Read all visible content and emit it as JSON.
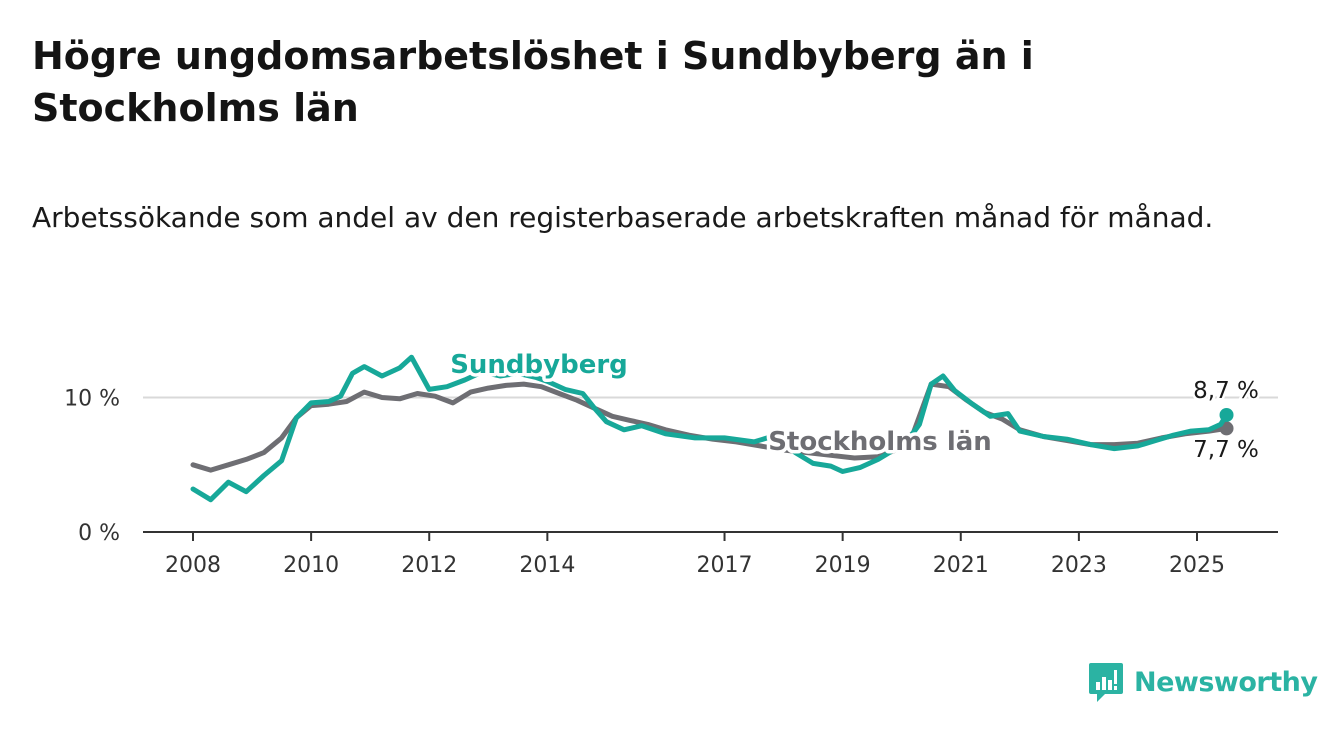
{
  "title": "Högre ungdomsarbetslöshet i Sundbyberg än i Stockholms län",
  "subtitle": "Arbetssökande som andel av den registerbaserade arbetskraften månad för månad.",
  "brand": {
    "name": "Newsworthy"
  },
  "chart_data": {
    "type": "line",
    "title": "Högre ungdomsarbetslöshet i Sundbyberg än i Stockholms län",
    "subtitle": "Arbetssökande som andel av den registerbaserade arbetskraften månad för månad.",
    "xlabel": "",
    "ylabel": "",
    "xlim": [
      2008,
      2026.2
    ],
    "ylim": [
      0,
      12.5
    ],
    "x_ticks": [
      2008,
      2010,
      2012,
      2014,
      2017,
      2019,
      2021,
      2023,
      2025
    ],
    "x_tick_labels": [
      "2008",
      "2010",
      "2012",
      "2014",
      "2017",
      "2019",
      "2021",
      "2023",
      "2025"
    ],
    "y_ticks": [
      0,
      10
    ],
    "y_tick_labels": [
      "0 %",
      "10 %"
    ],
    "grid": "horizontal",
    "colors": {
      "Sundbyberg": "#17a899",
      "Stockholms län": "#6e6e73"
    },
    "series": [
      {
        "name": "Sundbyberg",
        "label": "Sundbyberg",
        "end_label": "8,7 %",
        "points": [
          [
            2008.0,
            3.2
          ],
          [
            2008.3,
            2.4
          ],
          [
            2008.6,
            3.7
          ],
          [
            2008.9,
            3.0
          ],
          [
            2009.2,
            4.2
          ],
          [
            2009.5,
            5.3
          ],
          [
            2009.75,
            8.5
          ],
          [
            2010.0,
            9.6
          ],
          [
            2010.3,
            9.7
          ],
          [
            2010.5,
            10.1
          ],
          [
            2010.7,
            11.8
          ],
          [
            2010.9,
            12.3
          ],
          [
            2011.2,
            11.6
          ],
          [
            2011.5,
            12.2
          ],
          [
            2011.7,
            13.0
          ],
          [
            2012.0,
            10.6
          ],
          [
            2012.3,
            10.8
          ],
          [
            2012.6,
            11.3
          ],
          [
            2012.9,
            11.9
          ],
          [
            2013.2,
            11.6
          ],
          [
            2013.5,
            11.8
          ],
          [
            2013.8,
            11.5
          ],
          [
            2014.0,
            11.2
          ],
          [
            2014.3,
            10.6
          ],
          [
            2014.6,
            10.3
          ],
          [
            2014.8,
            9.2
          ],
          [
            2015.0,
            8.2
          ],
          [
            2015.3,
            7.6
          ],
          [
            2015.6,
            7.9
          ],
          [
            2016.0,
            7.3
          ],
          [
            2016.5,
            7.0
          ],
          [
            2017.0,
            7.0
          ],
          [
            2017.5,
            6.7
          ],
          [
            2017.8,
            7.1
          ],
          [
            2018.2,
            5.9
          ],
          [
            2018.5,
            5.1
          ],
          [
            2018.8,
            4.9
          ],
          [
            2019.0,
            4.5
          ],
          [
            2019.3,
            4.8
          ],
          [
            2019.6,
            5.4
          ],
          [
            2019.9,
            6.2
          ],
          [
            2020.1,
            6.8
          ],
          [
            2020.3,
            8.0
          ],
          [
            2020.5,
            11.0
          ],
          [
            2020.7,
            11.6
          ],
          [
            2020.9,
            10.5
          ],
          [
            2021.2,
            9.5
          ],
          [
            2021.5,
            8.6
          ],
          [
            2021.8,
            8.8
          ],
          [
            2022.0,
            7.5
          ],
          [
            2022.4,
            7.1
          ],
          [
            2022.8,
            6.9
          ],
          [
            2023.2,
            6.5
          ],
          [
            2023.6,
            6.2
          ],
          [
            2024.0,
            6.4
          ],
          [
            2024.3,
            6.8
          ],
          [
            2024.6,
            7.2
          ],
          [
            2024.9,
            7.5
          ],
          [
            2025.2,
            7.6
          ],
          [
            2025.4,
            8.0
          ],
          [
            2025.5,
            8.7
          ]
        ]
      },
      {
        "name": "Stockholms län",
        "label": "Stockholms län",
        "end_label": "7,7 %",
        "points": [
          [
            2008.0,
            5.0
          ],
          [
            2008.3,
            4.6
          ],
          [
            2008.6,
            5.0
          ],
          [
            2008.9,
            5.4
          ],
          [
            2009.2,
            5.9
          ],
          [
            2009.5,
            7.0
          ],
          [
            2009.75,
            8.5
          ],
          [
            2010.0,
            9.4
          ],
          [
            2010.3,
            9.5
          ],
          [
            2010.6,
            9.7
          ],
          [
            2010.9,
            10.4
          ],
          [
            2011.2,
            10.0
          ],
          [
            2011.5,
            9.9
          ],
          [
            2011.8,
            10.3
          ],
          [
            2012.1,
            10.1
          ],
          [
            2012.4,
            9.6
          ],
          [
            2012.7,
            10.4
          ],
          [
            2013.0,
            10.7
          ],
          [
            2013.3,
            10.9
          ],
          [
            2013.6,
            11.0
          ],
          [
            2013.9,
            10.8
          ],
          [
            2014.2,
            10.3
          ],
          [
            2014.5,
            9.8
          ],
          [
            2014.8,
            9.2
          ],
          [
            2015.1,
            8.6
          ],
          [
            2015.4,
            8.3
          ],
          [
            2015.7,
            8.0
          ],
          [
            2016.0,
            7.6
          ],
          [
            2016.4,
            7.2
          ],
          [
            2016.8,
            6.9
          ],
          [
            2017.2,
            6.7
          ],
          [
            2017.6,
            6.4
          ],
          [
            2018.0,
            6.1
          ],
          [
            2018.4,
            5.9
          ],
          [
            2018.8,
            5.7
          ],
          [
            2019.2,
            5.5
          ],
          [
            2019.6,
            5.6
          ],
          [
            2019.9,
            6.1
          ],
          [
            2020.2,
            7.4
          ],
          [
            2020.5,
            11.0
          ],
          [
            2020.8,
            10.8
          ],
          [
            2021.1,
            9.8
          ],
          [
            2021.4,
            8.9
          ],
          [
            2021.7,
            8.4
          ],
          [
            2022.0,
            7.6
          ],
          [
            2022.4,
            7.1
          ],
          [
            2022.8,
            6.8
          ],
          [
            2023.2,
            6.5
          ],
          [
            2023.6,
            6.5
          ],
          [
            2024.0,
            6.6
          ],
          [
            2024.4,
            7.0
          ],
          [
            2024.8,
            7.3
          ],
          [
            2025.2,
            7.5
          ],
          [
            2025.5,
            7.7
          ]
        ]
      }
    ]
  }
}
